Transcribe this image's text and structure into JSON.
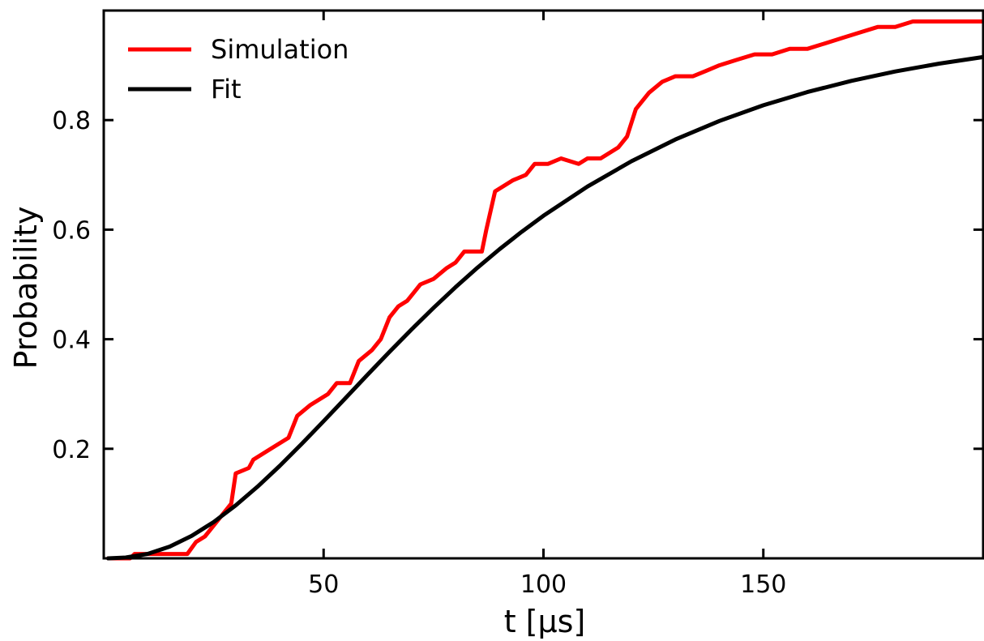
{
  "chart_data": {
    "type": "line",
    "title": "",
    "xlabel": "t [μs]",
    "ylabel": "Probability",
    "xlim": [
      0,
      200
    ],
    "ylim": [
      0,
      1.0
    ],
    "xticks": [
      50,
      100,
      150
    ],
    "xtick_labels": [
      "50",
      "100",
      "150"
    ],
    "yticks": [
      0.2,
      0.4,
      0.6,
      0.8
    ],
    "ytick_labels": [
      "0.2",
      "0.4",
      "0.6",
      "0.8"
    ],
    "grid": false,
    "legend_position": "top-left",
    "series": [
      {
        "name": "Simulation",
        "color": "#ff0000",
        "points": [
          [
            1,
            0.0
          ],
          [
            6,
            0.0
          ],
          [
            7,
            0.008
          ],
          [
            19,
            0.008
          ],
          [
            21,
            0.03
          ],
          [
            23,
            0.04
          ],
          [
            26,
            0.07
          ],
          [
            29,
            0.1
          ],
          [
            30,
            0.155
          ],
          [
            33,
            0.165
          ],
          [
            34,
            0.18
          ],
          [
            38,
            0.2
          ],
          [
            42,
            0.22
          ],
          [
            44,
            0.26
          ],
          [
            47,
            0.28
          ],
          [
            51,
            0.3
          ],
          [
            53,
            0.32
          ],
          [
            56,
            0.32
          ],
          [
            58,
            0.36
          ],
          [
            61,
            0.38
          ],
          [
            63,
            0.4
          ],
          [
            65,
            0.44
          ],
          [
            67,
            0.46
          ],
          [
            69,
            0.47
          ],
          [
            72,
            0.5
          ],
          [
            75,
            0.51
          ],
          [
            78,
            0.53
          ],
          [
            80,
            0.54
          ],
          [
            82,
            0.56
          ],
          [
            84,
            0.56
          ],
          [
            86,
            0.56
          ],
          [
            87,
            0.6
          ],
          [
            89,
            0.67
          ],
          [
            93,
            0.69
          ],
          [
            96,
            0.7
          ],
          [
            98,
            0.72
          ],
          [
            101,
            0.72
          ],
          [
            104,
            0.73
          ],
          [
            108,
            0.72
          ],
          [
            110,
            0.73
          ],
          [
            113,
            0.73
          ],
          [
            117,
            0.75
          ],
          [
            119,
            0.77
          ],
          [
            121,
            0.82
          ],
          [
            124,
            0.85
          ],
          [
            127,
            0.87
          ],
          [
            130,
            0.88
          ],
          [
            134,
            0.88
          ],
          [
            137,
            0.89
          ],
          [
            140,
            0.9
          ],
          [
            144,
            0.91
          ],
          [
            148,
            0.92
          ],
          [
            152,
            0.92
          ],
          [
            156,
            0.93
          ],
          [
            160,
            0.93
          ],
          [
            164,
            0.94
          ],
          [
            168,
            0.95
          ],
          [
            172,
            0.96
          ],
          [
            176,
            0.97
          ],
          [
            180,
            0.97
          ],
          [
            184,
            0.98
          ],
          [
            188,
            0.98
          ],
          [
            192,
            0.98
          ],
          [
            196,
            0.98
          ],
          [
            200,
            0.98
          ]
        ]
      },
      {
        "name": "Fit",
        "color": "#000000",
        "points": [
          [
            1,
            0.0
          ],
          [
            5,
            0.0015
          ],
          [
            10,
            0.0082
          ],
          [
            15,
            0.0214
          ],
          [
            20,
            0.041
          ],
          [
            25,
            0.0663
          ],
          [
            30,
            0.0967
          ],
          [
            35,
            0.131
          ],
          [
            40,
            0.1687
          ],
          [
            45,
            0.2088
          ],
          [
            50,
            0.2505
          ],
          [
            55,
            0.2928
          ],
          [
            60,
            0.3352
          ],
          [
            65,
            0.3771
          ],
          [
            70,
            0.4179
          ],
          [
            75,
            0.4572
          ],
          [
            80,
            0.4949
          ],
          [
            85,
            0.5306
          ],
          [
            90,
            0.5643
          ],
          [
            95,
            0.5959
          ],
          [
            100,
            0.6254
          ],
          [
            110,
            0.6787
          ],
          [
            120,
            0.7249
          ],
          [
            130,
            0.7646
          ],
          [
            140,
            0.7983
          ],
          [
            150,
            0.827
          ],
          [
            160,
            0.8512
          ],
          [
            170,
            0.8716
          ],
          [
            180,
            0.8887
          ],
          [
            190,
            0.9031
          ],
          [
            200,
            0.9151
          ]
        ]
      }
    ]
  }
}
